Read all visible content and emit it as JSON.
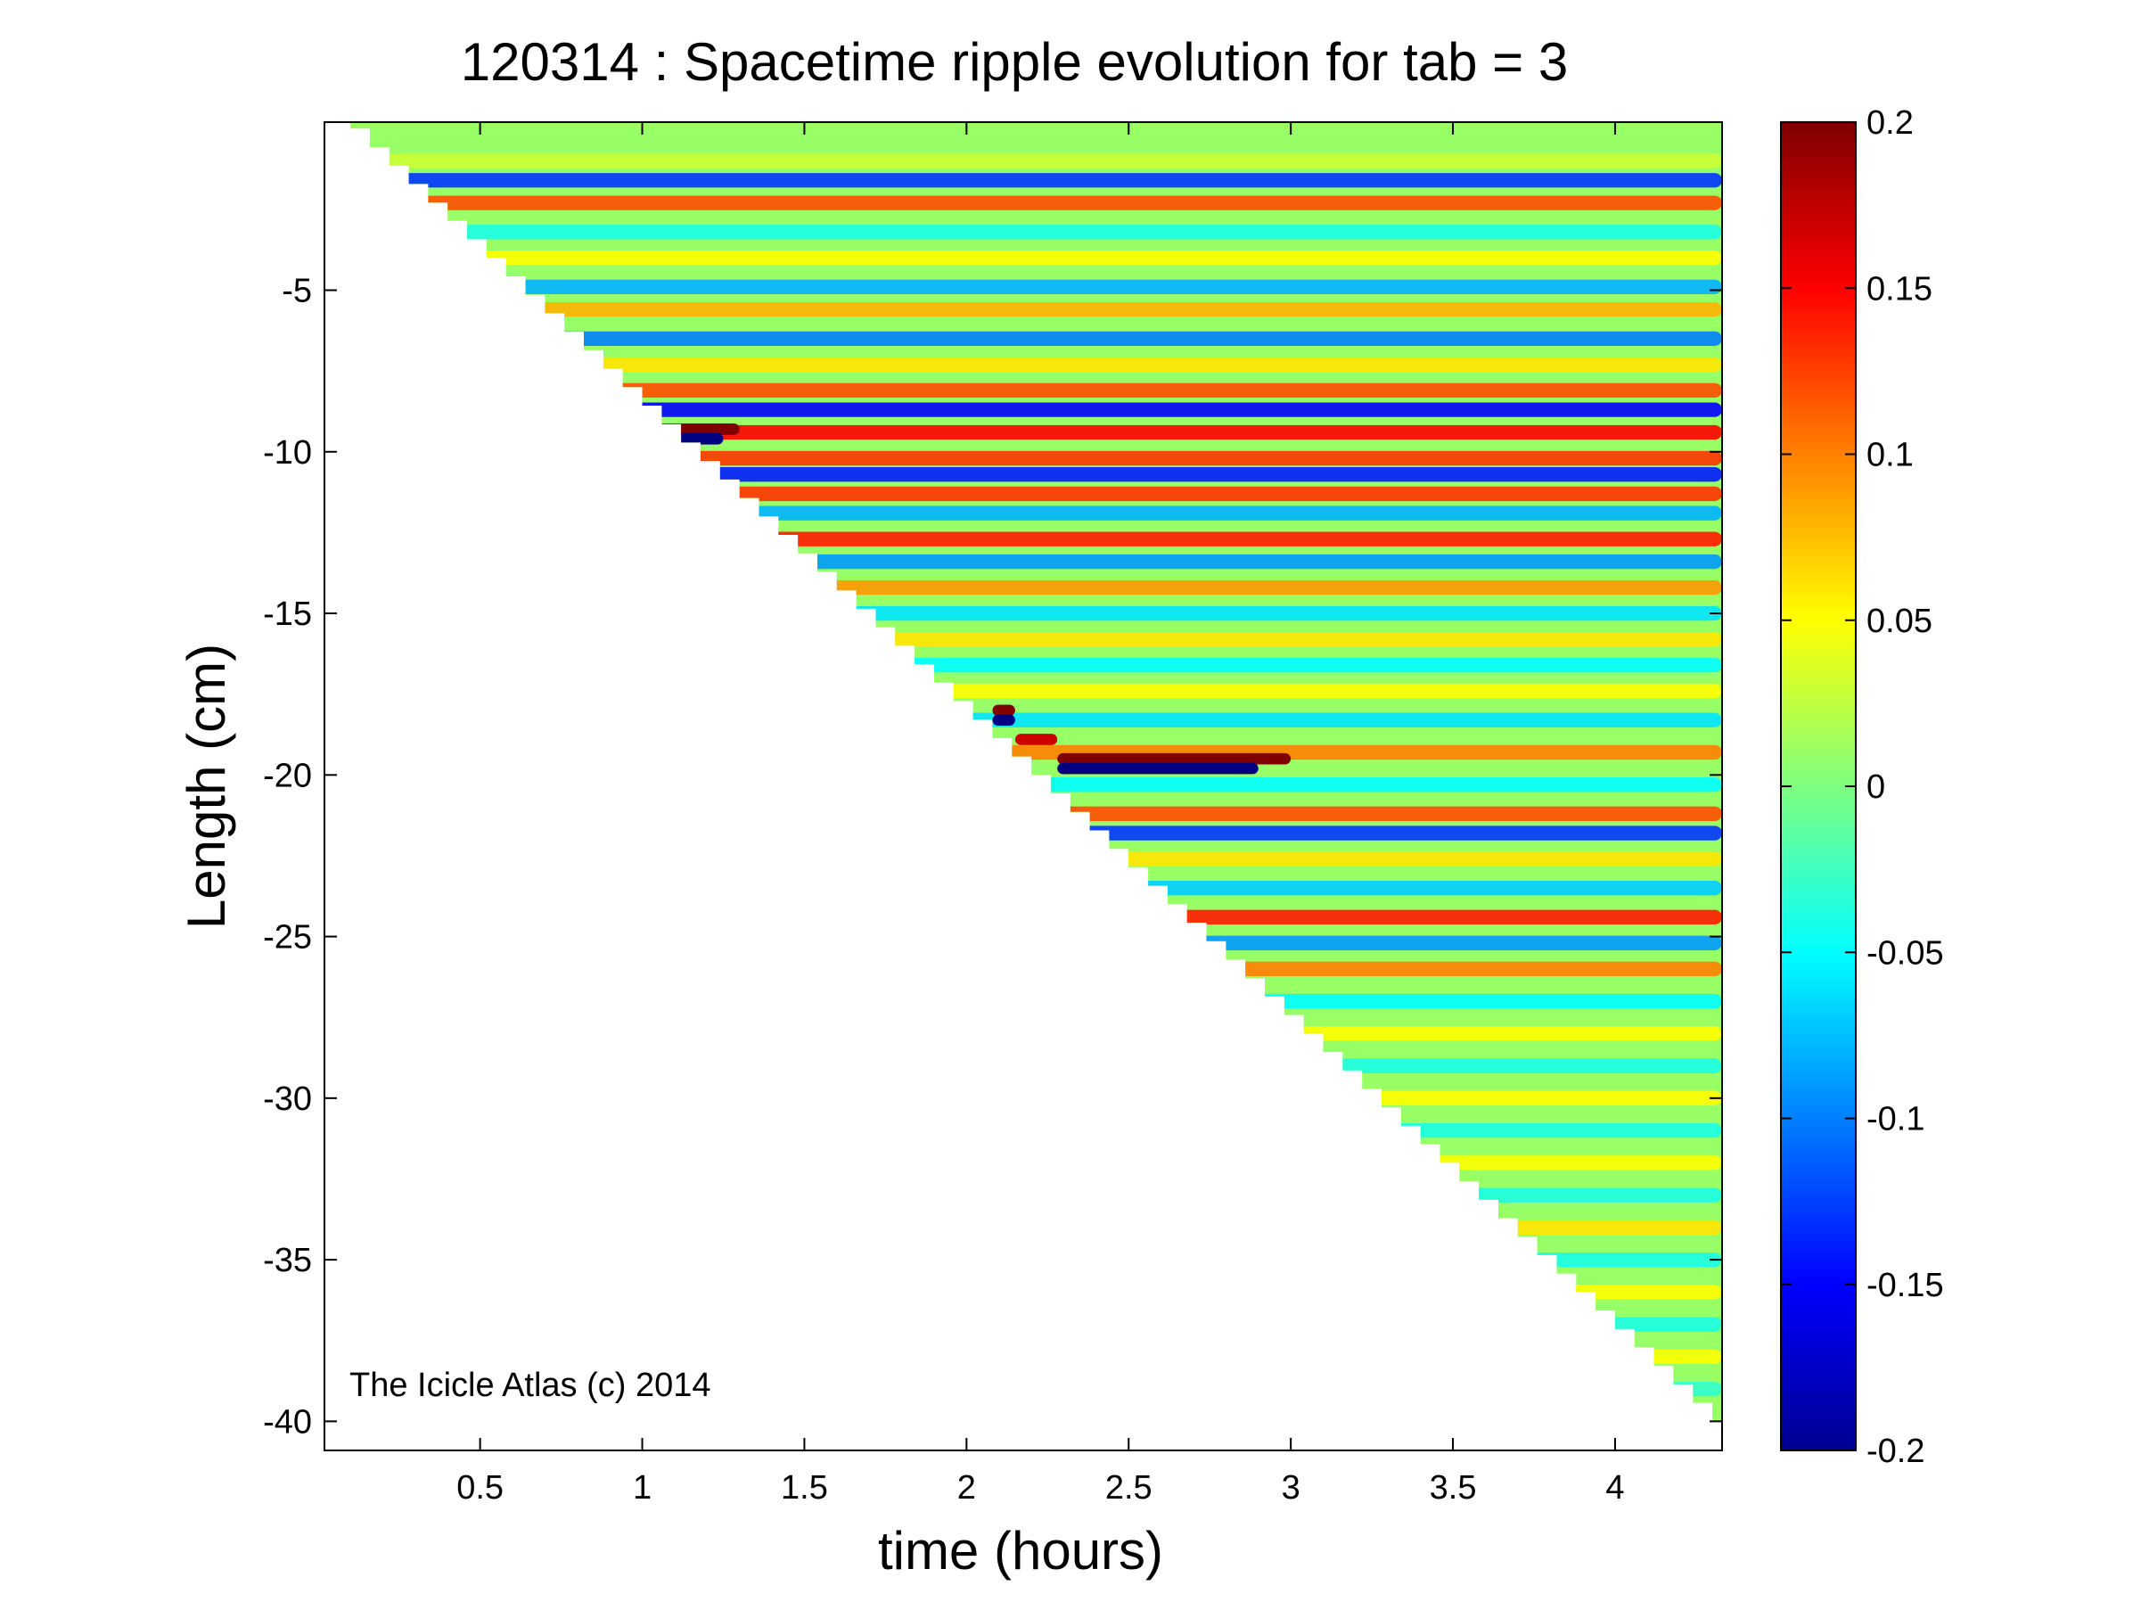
{
  "chart_data": {
    "type": "heatmap",
    "title": "120314 : Spacetime ripple evolution for tab = 3",
    "xlabel": "time (hours)",
    "ylabel": "Length (cm)",
    "xlim": [
      0.02,
      4.33
    ],
    "ylim": [
      -40.9,
      0.2
    ],
    "xticks": [
      0.5,
      1,
      1.5,
      2,
      2.5,
      3,
      3.5,
      4
    ],
    "xtick_labels": [
      "0.5",
      "1",
      "1.5",
      "2",
      "2.5",
      "3",
      "3.5",
      "4"
    ],
    "yticks": [
      -5,
      -10,
      -15,
      -20,
      -25,
      -30,
      -35,
      -40
    ],
    "ytick_labels": [
      "-5",
      "-10",
      "-15",
      "-20",
      "-25",
      "-30",
      "-35",
      "-40"
    ],
    "colorbar": {
      "range": [
        -0.2,
        0.2
      ],
      "ticks": [
        0.2,
        0.15,
        0.1,
        0.05,
        0,
        -0.05,
        -0.1,
        -0.15,
        -0.2
      ],
      "tick_labels": [
        "0.2",
        "0.15",
        "0.1",
        "0.05",
        "0",
        "-0.05",
        "-0.1",
        "-0.15",
        "-0.2"
      ],
      "colormap": "jet"
    },
    "data_boundary": {
      "description": "data present above the growth front; front runs from (0.1, 0) to (4.3, -40)",
      "points": [
        [
          0.1,
          0.0
        ],
        [
          4.3,
          -40.0
        ]
      ]
    },
    "ripple_bands": [
      {
        "length": -1.0,
        "amplitude": 0.03
      },
      {
        "length": -1.6,
        "amplitude": -0.13
      },
      {
        "length": -2.3,
        "amplitude": 0.12
      },
      {
        "length": -3.2,
        "amplitude": -0.04
      },
      {
        "length": -4.0,
        "amplitude": 0.05
      },
      {
        "length": -4.9,
        "amplitude": -0.08
      },
      {
        "length": -5.6,
        "amplitude": 0.08
      },
      {
        "length": -6.5,
        "amplitude": -0.1
      },
      {
        "length": -7.3,
        "amplitude": 0.06
      },
      {
        "length": -8.1,
        "amplitude": 0.12
      },
      {
        "length": -8.7,
        "amplitude": -0.15
      },
      {
        "length": -9.4,
        "amplitude": 0.15
      },
      {
        "length": -10.2,
        "amplitude": 0.13
      },
      {
        "length": -10.7,
        "amplitude": -0.14
      },
      {
        "length": -11.3,
        "amplitude": 0.13
      },
      {
        "length": -11.9,
        "amplitude": -0.08
      },
      {
        "length": -12.7,
        "amplitude": 0.14
      },
      {
        "length": -13.4,
        "amplitude": -0.09
      },
      {
        "length": -14.2,
        "amplitude": 0.09
      },
      {
        "length": -15.0,
        "amplitude": -0.06
      },
      {
        "length": -15.8,
        "amplitude": 0.06
      },
      {
        "length": -16.6,
        "amplitude": -0.05
      },
      {
        "length": -17.4,
        "amplitude": 0.05
      },
      {
        "length": -18.3,
        "amplitude": -0.06
      },
      {
        "length": -19.3,
        "amplitude": 0.1
      },
      {
        "length": -20.3,
        "amplitude": -0.05
      },
      {
        "length": -21.2,
        "amplitude": 0.12
      },
      {
        "length": -21.8,
        "amplitude": -0.13
      },
      {
        "length": -22.6,
        "amplitude": 0.06
      },
      {
        "length": -23.5,
        "amplitude": -0.07
      },
      {
        "length": -24.4,
        "amplitude": 0.14
      },
      {
        "length": -25.2,
        "amplitude": -0.09
      },
      {
        "length": -26.0,
        "amplitude": 0.1
      },
      {
        "length": -27.0,
        "amplitude": -0.05
      },
      {
        "length": -28.0,
        "amplitude": 0.05
      },
      {
        "length": -29.0,
        "amplitude": -0.04
      },
      {
        "length": -30.0,
        "amplitude": 0.05
      },
      {
        "length": -31.0,
        "amplitude": -0.04
      },
      {
        "length": -32.0,
        "amplitude": 0.05
      },
      {
        "length": -33.0,
        "amplitude": -0.04
      },
      {
        "length": -34.0,
        "amplitude": 0.06
      },
      {
        "length": -35.0,
        "amplitude": -0.04
      },
      {
        "length": -36.0,
        "amplitude": 0.05
      },
      {
        "length": -37.0,
        "amplitude": -0.04
      },
      {
        "length": -38.0,
        "amplitude": 0.05
      },
      {
        "length": -39.0,
        "amplitude": -0.03
      }
    ],
    "features": [
      {
        "t_start": 0.9,
        "t_end": 1.3,
        "length": -9.3,
        "amplitude": 0.2
      },
      {
        "t_start": 1.0,
        "t_end": 1.25,
        "length": -9.6,
        "amplitude": -0.2
      },
      {
        "t_start": 2.08,
        "t_end": 2.15,
        "length": -18.0,
        "amplitude": 0.2
      },
      {
        "t_start": 2.08,
        "t_end": 2.15,
        "length": -18.3,
        "amplitude": -0.2
      },
      {
        "t_start": 2.15,
        "t_end": 2.28,
        "length": -18.9,
        "amplitude": 0.17
      },
      {
        "t_start": 2.28,
        "t_end": 3.0,
        "length": -19.5,
        "amplitude": 0.2
      },
      {
        "t_start": 2.28,
        "t_end": 2.9,
        "length": -19.8,
        "amplitude": -0.2
      }
    ],
    "annotation": "The Icicle Atlas (c) 2014"
  }
}
